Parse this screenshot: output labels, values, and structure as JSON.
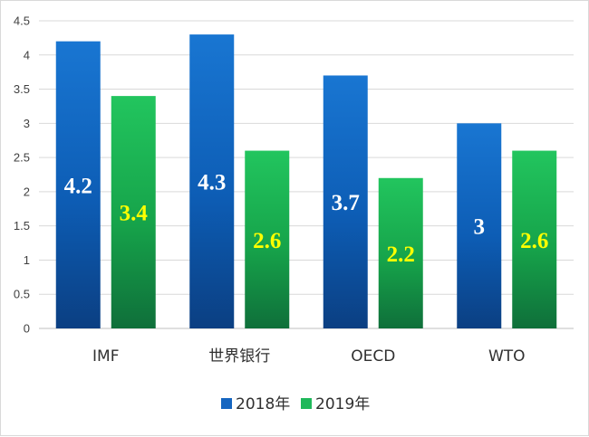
{
  "chart_data": {
    "type": "bar",
    "categories": [
      "IMF",
      "世界银行",
      "OECD",
      "WTO"
    ],
    "series": [
      {
        "name": "2018年",
        "values": [
          4.2,
          4.3,
          3.7,
          3
        ],
        "color": "#1565c0",
        "label_color": "#ffffff"
      },
      {
        "name": "2019年",
        "values": [
          3.4,
          2.6,
          2.2,
          2.6
        ],
        "color": "#1fb85a",
        "label_color": "#ffff00"
      }
    ],
    "data_labels": [
      [
        "4.2",
        "4.3",
        "3.7",
        "3"
      ],
      [
        "3.4",
        "2.6",
        "2.2",
        "2.6"
      ]
    ],
    "ylim": [
      0,
      4.5
    ],
    "yticks": [
      "0",
      "0.5",
      "1",
      "1.5",
      "2",
      "2.5",
      "3",
      "3.5",
      "4",
      "4.5"
    ],
    "grid": true,
    "legend_position": "bottom-center",
    "title": "",
    "xlabel": "",
    "ylabel": ""
  }
}
